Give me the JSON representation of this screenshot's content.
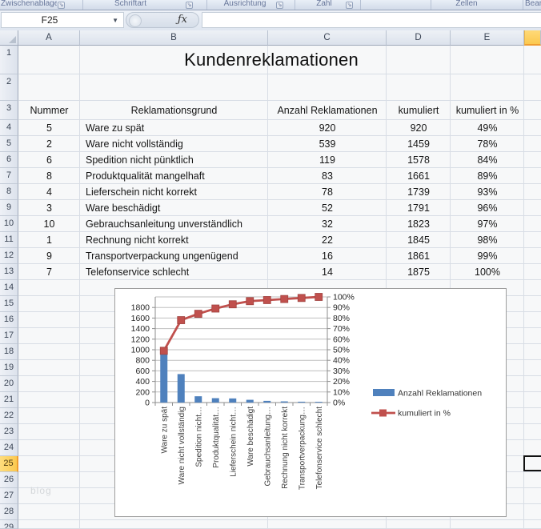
{
  "ribbon": {
    "groups": [
      "Zwischenablage",
      "Schriftart",
      "Ausrichtung",
      "Zahl",
      "Zellen",
      "Bearbeiten"
    ]
  },
  "formula_bar": {
    "name_box": "F25",
    "fx_label": "ƒx",
    "formula_value": ""
  },
  "sheet": {
    "column_headers": [
      "A",
      "B",
      "C",
      "D",
      "E"
    ],
    "visible_row_count": 29,
    "selection": {
      "cell": "F25",
      "column": "F",
      "row": 25
    },
    "title": "Kundenreklamationen",
    "watermark": "blog",
    "table": {
      "headers": [
        "Nummer",
        "Reklamationsgrund",
        "Anzahl Reklamationen",
        "kumuliert",
        "kumuliert in %"
      ],
      "rows": [
        [
          "5",
          "Ware zu spät",
          "920",
          "920",
          "49%"
        ],
        [
          "2",
          "Ware nicht vollständig",
          "539",
          "1459",
          "78%"
        ],
        [
          "6",
          "Spedition nicht pünktlich",
          "119",
          "1578",
          "84%"
        ],
        [
          "8",
          "Produktqualität mangelhaft",
          "83",
          "1661",
          "89%"
        ],
        [
          "4",
          "Lieferschein nicht korrekt",
          "78",
          "1739",
          "93%"
        ],
        [
          "3",
          "Ware beschädigt",
          "52",
          "1791",
          "96%"
        ],
        [
          "10",
          "Gebrauchsanleitung unverständlich",
          "32",
          "1823",
          "97%"
        ],
        [
          "1",
          "Rechnung nicht korrekt",
          "22",
          "1845",
          "98%"
        ],
        [
          "9",
          "Transportverpackung ungenügend",
          "16",
          "1861",
          "99%"
        ],
        [
          "7",
          "Telefonservice schlecht",
          "14",
          "1875",
          "100%"
        ]
      ]
    }
  },
  "chart_data": {
    "type": "bar+line (pareto)",
    "categories": [
      "Ware zu spät",
      "Ware nicht vollständig",
      "Spedition nicht…",
      "Produktqualität…",
      "Lieferschein nicht…",
      "Ware beschädigt",
      "Gebrauchsanleitung…",
      "Rechnung nicht korrekt",
      "Transportverpackung…",
      "Telefonservice schlecht"
    ],
    "series": [
      {
        "name": "Anzahl Reklamationen",
        "type": "bar",
        "color": "#4f81bd",
        "values": [
          920,
          539,
          119,
          83,
          78,
          52,
          32,
          22,
          16,
          14
        ]
      },
      {
        "name": "kumuliert in %",
        "type": "line",
        "color": "#c0504d",
        "values": [
          49,
          78,
          84,
          89,
          93,
          96,
          97,
          98,
          99,
          100
        ]
      }
    ],
    "left_axis": {
      "min": 0,
      "max": 2000,
      "step": 200,
      "highest_label": 1800
    },
    "right_axis": {
      "min": 0,
      "max": 100,
      "step": 10,
      "unit": "%"
    },
    "grid": true,
    "legend_position": "right",
    "title": ""
  }
}
